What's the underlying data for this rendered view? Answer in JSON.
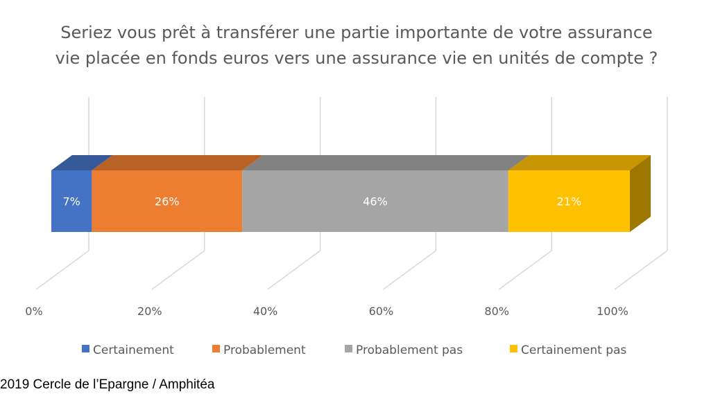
{
  "chart_data": {
    "type": "bar",
    "orientation": "horizontal",
    "stacked": true,
    "percent_stacked": true,
    "three_d": true,
    "title": [
      "Seriez vous prêt à transférer une partie importante de votre assurance",
      "vie placée en fonds euros vers une assurance vie en unités de compte ?"
    ],
    "xlim": [
      0,
      100
    ],
    "x_ticks": [
      "0%",
      "20%",
      "40%",
      "60%",
      "80%",
      "100%"
    ],
    "grid": true,
    "legend_position": "bottom",
    "series": [
      {
        "name": "Certainement",
        "value": 7,
        "label": "7%",
        "color": "#4472C4"
      },
      {
        "name": "Probablement",
        "value": 26,
        "label": "26%",
        "color": "#ED7D31"
      },
      {
        "name": "Probablement pas",
        "value": 46,
        "label": "46%",
        "color": "#A5A5A5"
      },
      {
        "name": "Certainement pas",
        "value": 21,
        "label": "21%",
        "color": "#FFC000"
      }
    ]
  },
  "footer": {
    "source": "2019 Cercle de l’Epargne / Amphitéa"
  }
}
